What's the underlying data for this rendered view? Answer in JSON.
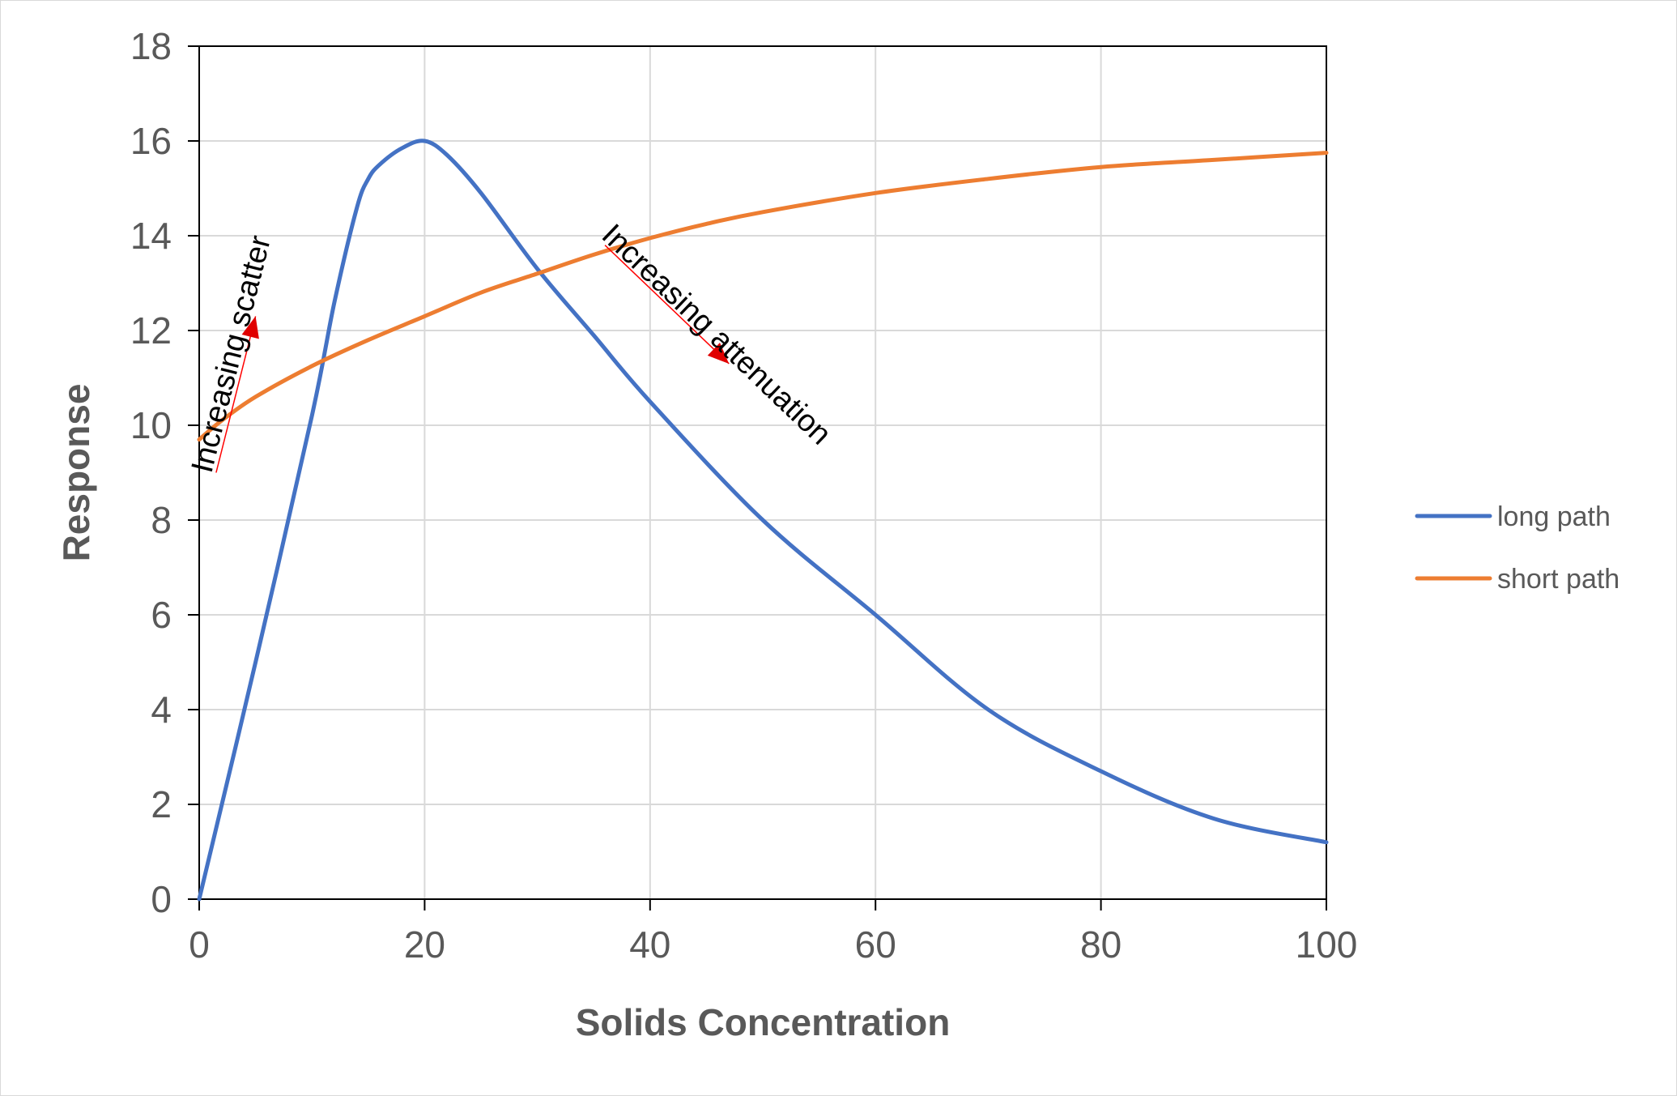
{
  "chart_data": {
    "type": "line",
    "title": "",
    "xlabel": "Solids Concentration",
    "ylabel": "Response",
    "xlim": [
      0,
      100
    ],
    "ylim": [
      0,
      18
    ],
    "xticks": [
      "0",
      "20",
      "40",
      "60",
      "80",
      "100"
    ],
    "yticks": [
      "0",
      "2",
      "4",
      "6",
      "8",
      "10",
      "12",
      "14",
      "16",
      "18"
    ],
    "grid": true,
    "legend_position": "right",
    "series": [
      {
        "name": "long path",
        "color": "#4472C4",
        "x": [
          0,
          5,
          10,
          12,
          14,
          15,
          16,
          18,
          20,
          22,
          25,
          30,
          35,
          40,
          50,
          60,
          70,
          80,
          90,
          100
        ],
        "y": [
          0,
          5.0,
          10.2,
          12.6,
          14.6,
          15.2,
          15.5,
          15.85,
          16.0,
          15.7,
          14.9,
          13.3,
          11.9,
          10.5,
          8.0,
          6.0,
          4.0,
          2.7,
          1.7,
          1.2
        ]
      },
      {
        "name": "short path",
        "color": "#ED7D31",
        "x": [
          0,
          2,
          5,
          10,
          15,
          20,
          25,
          30,
          35,
          40,
          45,
          50,
          60,
          70,
          80,
          90,
          100
        ],
        "y": [
          9.7,
          10.1,
          10.6,
          11.25,
          11.8,
          12.3,
          12.8,
          13.2,
          13.6,
          13.95,
          14.25,
          14.5,
          14.9,
          15.2,
          15.45,
          15.6,
          15.75
        ]
      }
    ],
    "annotations": [
      {
        "text": "Increasing scatter",
        "arrow_from": [
          1.5,
          9.0
        ],
        "arrow_to": [
          5.0,
          12.3
        ]
      },
      {
        "text": "Increasing attenuation",
        "arrow_from": [
          36,
          13.8
        ],
        "arrow_to": [
          47,
          11.3
        ]
      }
    ]
  }
}
